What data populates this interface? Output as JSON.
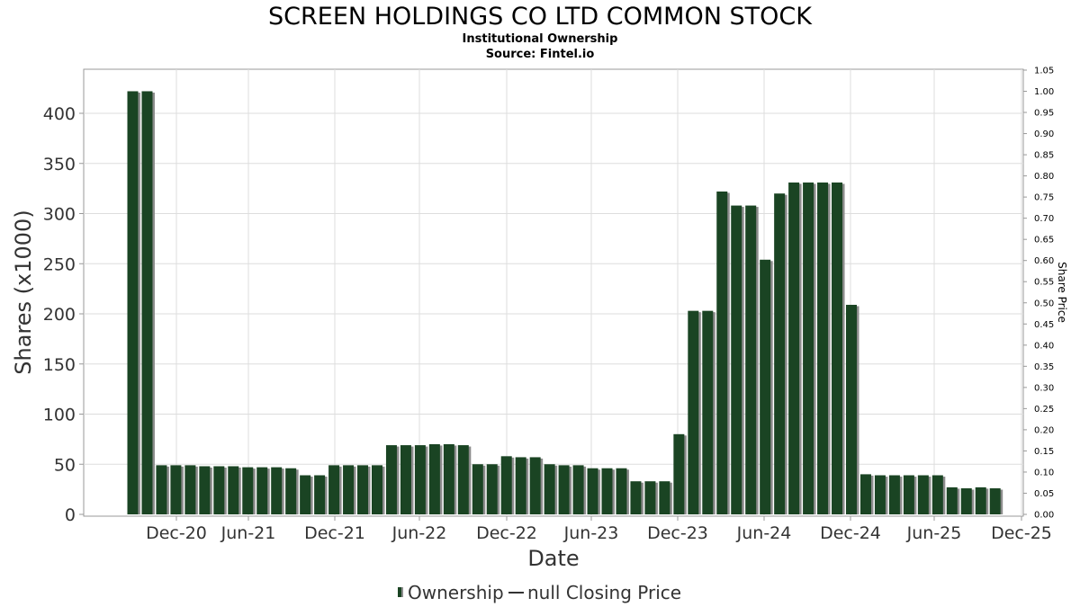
{
  "title": "SCREEN HOLDINGS CO LTD COMMON STOCK",
  "subtitle": "Institutional Ownership",
  "source": "Source: Fintel.io",
  "colors": {
    "bar": "#1a4423",
    "bar_shadow": "#8c8c8c",
    "grid": "#dddddd"
  },
  "chart_data": {
    "type": "bar",
    "title": "SCREEN HOLDINGS CO LTD COMMON STOCK",
    "subtitle": "Institutional Ownership",
    "xlabel": "Date",
    "ylabel": "Shares (x1000)",
    "y2label": "Share Price",
    "ylim": [
      0,
      440
    ],
    "y2lim": [
      0,
      1.05
    ],
    "grid": true,
    "legend_position": "bottom",
    "yticks": [
      0,
      50,
      100,
      150,
      200,
      250,
      300,
      350,
      400
    ],
    "y2ticks": [
      "0.00",
      "0.05",
      "0.10",
      "0.15",
      "0.20",
      "0.25",
      "0.30",
      "0.35",
      "0.40",
      "0.45",
      "0.50",
      "0.55",
      "0.60",
      "0.65",
      "0.70",
      "0.75",
      "0.80",
      "0.85",
      "0.90",
      "0.95",
      "1.00",
      "1.05"
    ],
    "xticks": [
      "Dec-20",
      "Jun-21",
      "Dec-21",
      "Jun-22",
      "Dec-22",
      "Jun-23",
      "Dec-23",
      "Jun-24",
      "Dec-24",
      "Jun-25",
      "Dec-25"
    ],
    "series": [
      {
        "name": "Ownership",
        "values": [
          422,
          422,
          49,
          49,
          49,
          48,
          48,
          48,
          47,
          47,
          47,
          46,
          39,
          39,
          49,
          49,
          49,
          49,
          69,
          69,
          69,
          70,
          70,
          69,
          50,
          50,
          58,
          57,
          57,
          50,
          49,
          49,
          46,
          46,
          46,
          33,
          33,
          33,
          80,
          203,
          203,
          322,
          308,
          308,
          254,
          320,
          331,
          331,
          331,
          331,
          209,
          40,
          39,
          39,
          39,
          39,
          39,
          27,
          26,
          27,
          26
        ]
      },
      {
        "name": "null Closing Price",
        "values": []
      }
    ]
  },
  "legend": {
    "items": [
      {
        "label": "Ownership",
        "swatch": "bar"
      },
      {
        "label": "null Closing Price",
        "swatch": "line"
      }
    ]
  }
}
